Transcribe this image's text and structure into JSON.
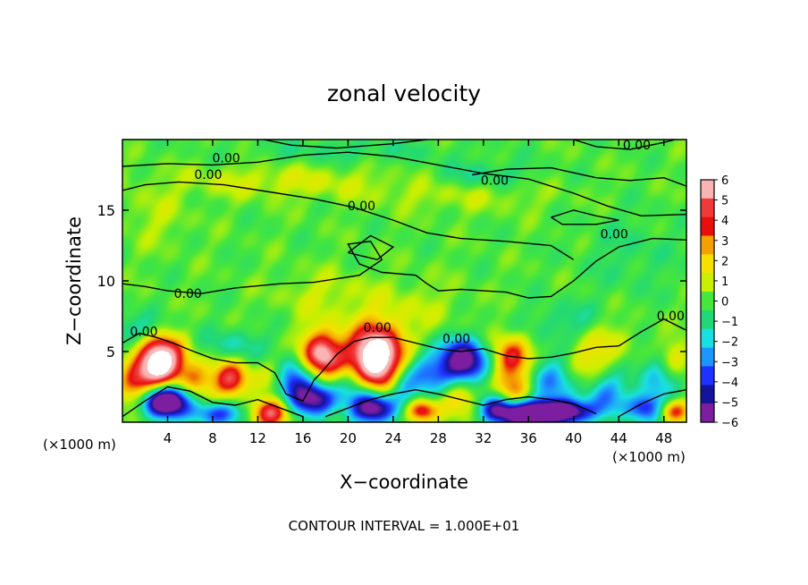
{
  "chart_data": {
    "type": "heatmap",
    "title": "zonal velocity",
    "xlabel": "X−coordinate",
    "ylabel": "Z−coordinate",
    "x_unit": "(×1000 m)",
    "x_unit_right": "(×1000 m)",
    "xlim": [
      0,
      50
    ],
    "ylim": [
      0,
      20
    ],
    "x_ticks": [
      "4",
      "8",
      "12",
      "16",
      "20",
      "24",
      "28",
      "32",
      "36",
      "40",
      "44",
      "48"
    ],
    "x_tick_values": [
      4,
      8,
      12,
      16,
      20,
      24,
      28,
      32,
      36,
      40,
      44,
      48
    ],
    "y_ticks": [
      "5",
      "10",
      "15"
    ],
    "y_tick_values": [
      5,
      10,
      15
    ],
    "colorbar": {
      "range": [
        -6,
        6
      ],
      "labels": [
        "6",
        "5",
        "4",
        "3",
        "2",
        "1",
        "0",
        "−1",
        "−2",
        "−3",
        "−4",
        "−5",
        "−6"
      ],
      "colors": [
        "#fbb4b4",
        "#f03a3a",
        "#e80e0e",
        "#f4a000",
        "#f7e000",
        "#c8f000",
        "#46e63c",
        "#20d878",
        "#19e0e0",
        "#1e96ff",
        "#1e32ff",
        "#14149a",
        "#7d1ea0"
      ]
    },
    "contour_labels": [
      {
        "text": "0.00",
        "x": 1.9,
        "z": 6.1
      },
      {
        "text": "0.00",
        "x": 5.8,
        "z": 8.8
      },
      {
        "text": "0.00",
        "x": 7.6,
        "z": 17.2
      },
      {
        "text": "0.00",
        "x": 9.2,
        "z": 18.4
      },
      {
        "text": "0.00",
        "x": 21.2,
        "z": 15.0
      },
      {
        "text": "0.00",
        "x": 22.6,
        "z": 6.4
      },
      {
        "text": "0.00",
        "x": 29.6,
        "z": 5.6
      },
      {
        "text": "0.00",
        "x": 33.0,
        "z": 16.8
      },
      {
        "text": "0.00",
        "x": 43.6,
        "z": 13.0
      },
      {
        "text": "0.00",
        "x": 45.6,
        "z": 19.3
      },
      {
        "text": "0.00",
        "x": 48.6,
        "z": 7.2
      }
    ],
    "features": [
      {
        "x": 3.3,
        "z": 4.3,
        "v": 8.5,
        "sx": 1.5,
        "sz": 1.3
      },
      {
        "x": 3.8,
        "z": 1.5,
        "v": -9,
        "sx": 1.5,
        "sz": 0.8
      },
      {
        "x": 1.0,
        "z": 2.5,
        "v": 3.5,
        "sx": 1.2,
        "sz": 1.0
      },
      {
        "x": 6.5,
        "z": 3.0,
        "v": 3.0,
        "sx": 1.0,
        "sz": 0.9
      },
      {
        "x": 9.6,
        "z": 3.0,
        "v": 5.0,
        "sx": 1.1,
        "sz": 0.9
      },
      {
        "x": 8.5,
        "z": 0.6,
        "v": -4.0,
        "sx": 1.6,
        "sz": 0.6
      },
      {
        "x": 13.3,
        "z": 0.7,
        "v": 5.5,
        "sx": 1.2,
        "sz": 0.7
      },
      {
        "x": 13.5,
        "z": 3.2,
        "v": 2.0,
        "sx": 1.2,
        "sz": 1.0
      },
      {
        "x": 15.0,
        "z": 2.8,
        "v": -5.0,
        "sx": 1.2,
        "sz": 1.2
      },
      {
        "x": 17.7,
        "z": 4.8,
        "v": 6.5,
        "sx": 1.3,
        "sz": 1.2
      },
      {
        "x": 17.2,
        "z": 1.6,
        "v": -6.0,
        "sx": 1.3,
        "sz": 0.8
      },
      {
        "x": 20.5,
        "z": 2.8,
        "v": -2.5,
        "sx": 1.2,
        "sz": 1.0
      },
      {
        "x": 22.5,
        "z": 4.5,
        "v": 9.5,
        "sx": 1.7,
        "sz": 1.6
      },
      {
        "x": 22.2,
        "z": 1.0,
        "v": -7.0,
        "sx": 1.4,
        "sz": 0.8
      },
      {
        "x": 24.8,
        "z": 2.5,
        "v": -3.0,
        "sx": 1.0,
        "sz": 1.0
      },
      {
        "x": 26.5,
        "z": 0.8,
        "v": 5.0,
        "sx": 1.0,
        "sz": 0.6
      },
      {
        "x": 27.0,
        "z": 3.5,
        "v": -3.0,
        "sx": 1.5,
        "sz": 1.2
      },
      {
        "x": 30.3,
        "z": 4.3,
        "v": -7.0,
        "sx": 1.4,
        "sz": 1.1
      },
      {
        "x": 30.0,
        "z": 1.8,
        "v": 2.5,
        "sx": 1.2,
        "sz": 0.9
      },
      {
        "x": 34.5,
        "z": 4.5,
        "v": 4.5,
        "sx": 1.2,
        "sz": 1.1
      },
      {
        "x": 34.7,
        "z": 2.0,
        "v": 3.0,
        "sx": 1.2,
        "sz": 1.0
      },
      {
        "x": 35.3,
        "z": 0.6,
        "v": -8.0,
        "sx": 1.5,
        "sz": 0.7
      },
      {
        "x": 33.0,
        "z": 1.0,
        "v": -4.0,
        "sx": 1.0,
        "sz": 0.7
      },
      {
        "x": 38.0,
        "z": 3.0,
        "v": -3.0,
        "sx": 1.5,
        "sz": 1.2
      },
      {
        "x": 39.0,
        "z": 0.7,
        "v": -8.0,
        "sx": 1.8,
        "sz": 0.6
      },
      {
        "x": 43.0,
        "z": 2.0,
        "v": -3.0,
        "sx": 1.3,
        "sz": 1.0
      },
      {
        "x": 46.5,
        "z": 1.0,
        "v": -4.5,
        "sx": 1.3,
        "sz": 0.7
      },
      {
        "x": 48.8,
        "z": 0.8,
        "v": 4.5,
        "sx": 1.0,
        "sz": 0.6
      },
      {
        "x": 47.5,
        "z": 3.2,
        "v": -2.5,
        "sx": 1.2,
        "sz": 1.2
      },
      {
        "x": 49.0,
        "z": 4.5,
        "v": 2.0,
        "sx": 1.0,
        "sz": 1.0
      },
      {
        "x": 41.0,
        "z": 4.2,
        "v": 1.5,
        "sx": 1.5,
        "sz": 1.0
      },
      {
        "x": 42.5,
        "z": 6.0,
        "v": 1.5,
        "sx": 2.0,
        "sz": 1.2
      },
      {
        "x": 1.5,
        "z": 6.5,
        "v": -2.0,
        "sx": 2.0,
        "sz": 0.8
      },
      {
        "x": 10.0,
        "z": 5.5,
        "v": -1.5,
        "sx": 2.0,
        "sz": 0.8
      },
      {
        "x": 40.0,
        "z": 7.0,
        "v": -1.5,
        "sx": 2.5,
        "sz": 1.0
      },
      {
        "x": 14.0,
        "z": 17.0,
        "v": 1.2,
        "sx": 7.0,
        "sz": 0.8
      },
      {
        "x": 30.0,
        "z": 16.0,
        "v": 0.8,
        "sx": 6.0,
        "sz": 0.8
      },
      {
        "x": 32.0,
        "z": 17.5,
        "v": -1.2,
        "sx": 3.0,
        "sz": 0.7
      },
      {
        "x": 20.0,
        "z": 19.2,
        "v": -0.9,
        "sx": 6.0,
        "sz": 0.6
      },
      {
        "x": 18.0,
        "z": 9.0,
        "v": 1.0,
        "sx": 3.0,
        "sz": 1.2
      },
      {
        "x": 26.0,
        "z": 8.0,
        "v": 0.8,
        "sx": 3.0,
        "sz": 1.5
      },
      {
        "x": 3.0,
        "z": 14.5,
        "v": 0.8,
        "sx": 2.0,
        "sz": 1.5
      },
      {
        "x": 45.0,
        "z": 12.0,
        "v": -0.7,
        "sx": 3.0,
        "sz": 2.0
      }
    ],
    "contours": [
      [
        [
          0,
          18.1
        ],
        [
          4,
          18.3
        ],
        [
          8,
          18.2
        ],
        [
          12,
          18.4
        ],
        [
          16,
          18.9
        ],
        [
          20,
          19.1
        ],
        [
          24,
          18.8
        ],
        [
          28,
          18.2
        ],
        [
          32,
          17.6
        ],
        [
          36,
          17.2
        ],
        [
          40,
          16.2
        ],
        [
          43,
          15.3
        ],
        [
          46,
          14.6
        ],
        [
          50,
          14.7
        ]
      ],
      [
        [
          0,
          16.4
        ],
        [
          2,
          16.8
        ],
        [
          5,
          17.0
        ],
        [
          9,
          16.8
        ],
        [
          13,
          16.3
        ],
        [
          17,
          15.8
        ],
        [
          20.5,
          15.2
        ],
        [
          24,
          14.3
        ],
        [
          27,
          13.4
        ],
        [
          30,
          13.0
        ],
        [
          34,
          12.8
        ],
        [
          38,
          12.5
        ],
        [
          40,
          11.5
        ]
      ],
      [
        [
          12.5,
          20
        ],
        [
          15,
          19.6
        ],
        [
          19,
          19.4
        ],
        [
          24,
          19.7
        ],
        [
          27,
          20
        ]
      ],
      [
        [
          40,
          20
        ],
        [
          42,
          19.5
        ],
        [
          45,
          19.3
        ],
        [
          48,
          19.8
        ],
        [
          49,
          20
        ]
      ],
      [
        [
          31,
          17.5
        ],
        [
          34,
          17.9
        ],
        [
          38,
          18.0
        ],
        [
          42,
          17.3
        ],
        [
          45,
          17.1
        ],
        [
          48,
          17.3
        ],
        [
          50,
          16.7
        ]
      ],
      [
        [
          0,
          9.8
        ],
        [
          2,
          9.6
        ],
        [
          4,
          9.3
        ],
        [
          7,
          9.1
        ],
        [
          10,
          9.5
        ],
        [
          14,
          9.8
        ],
        [
          17,
          9.9
        ],
        [
          21,
          10.4
        ],
        [
          23,
          11.5
        ],
        [
          22,
          12.8
        ],
        [
          20,
          12.6
        ],
        [
          21,
          11.2
        ],
        [
          23,
          10.6
        ],
        [
          26,
          10.4
        ],
        [
          27,
          9.8
        ],
        [
          28,
          9.3
        ],
        [
          30,
          9.4
        ],
        [
          32,
          9.3
        ],
        [
          34,
          9.2
        ],
        [
          36,
          8.8
        ],
        [
          38,
          8.9
        ],
        [
          40,
          10.0
        ],
        [
          42,
          11.4
        ],
        [
          44,
          12.4
        ],
        [
          47,
          13.0
        ],
        [
          50,
          12.9
        ]
      ],
      [
        [
          0,
          5.6
        ],
        [
          1.5,
          6.3
        ],
        [
          3,
          6.0
        ],
        [
          4.5,
          5.6
        ],
        [
          6,
          5.1
        ],
        [
          8,
          4.5
        ],
        [
          10,
          4.2
        ],
        [
          12,
          4.2
        ],
        [
          13.5,
          3.5
        ],
        [
          14.5,
          2.0
        ],
        [
          16,
          1.5
        ],
        [
          17,
          3.0
        ],
        [
          17.5,
          3.4
        ],
        [
          19,
          4.8
        ],
        [
          20.5,
          5.7
        ],
        [
          22,
          6.0
        ],
        [
          24,
          6.0
        ],
        [
          26,
          5.6
        ],
        [
          28,
          5.2
        ],
        [
          30,
          5.0
        ],
        [
          32,
          5.2
        ],
        [
          34,
          4.7
        ],
        [
          36,
          4.5
        ],
        [
          38,
          4.6
        ],
        [
          40,
          4.9
        ],
        [
          42,
          5.3
        ],
        [
          44,
          5.4
        ],
        [
          46,
          6.4
        ],
        [
          48,
          7.3
        ],
        [
          50,
          6.5
        ]
      ],
      [
        [
          0,
          0.4
        ],
        [
          2,
          1.5
        ],
        [
          4,
          2.5
        ],
        [
          6,
          2.2
        ],
        [
          8,
          1.4
        ],
        [
          10,
          1.2
        ],
        [
          12,
          1.6
        ],
        [
          14,
          1.0
        ],
        [
          16,
          0.4
        ]
      ],
      [
        [
          18,
          0.4
        ],
        [
          20,
          1.0
        ],
        [
          22,
          1.6
        ],
        [
          24,
          2.0
        ],
        [
          26,
          2.3
        ],
        [
          28,
          2.0
        ],
        [
          30,
          1.6
        ],
        [
          32,
          1.2
        ],
        [
          34,
          1.6
        ],
        [
          36,
          1.8
        ],
        [
          38,
          1.6
        ],
        [
          40,
          1.3
        ],
        [
          42,
          0.6
        ]
      ],
      [
        [
          44,
          0.4
        ],
        [
          46,
          1.3
        ],
        [
          48,
          2.0
        ],
        [
          50,
          2.3
        ]
      ],
      [
        [
          20,
          12.0
        ],
        [
          22,
          13.2
        ],
        [
          24,
          12.4
        ],
        [
          22.6,
          11.5
        ],
        [
          20,
          12.0
        ]
      ],
      [
        [
          38,
          14.5
        ],
        [
          40,
          15.0
        ],
        [
          42,
          14.6
        ],
        [
          44,
          14.3
        ],
        [
          42,
          14.0
        ],
        [
          39,
          14.0
        ],
        [
          38,
          14.5
        ]
      ]
    ],
    "annotation": "CONTOUR INTERVAL = 1.000E+01"
  },
  "colors": {
    "background": "#ffffff",
    "text": "#000000",
    "contour": "#000000"
  }
}
